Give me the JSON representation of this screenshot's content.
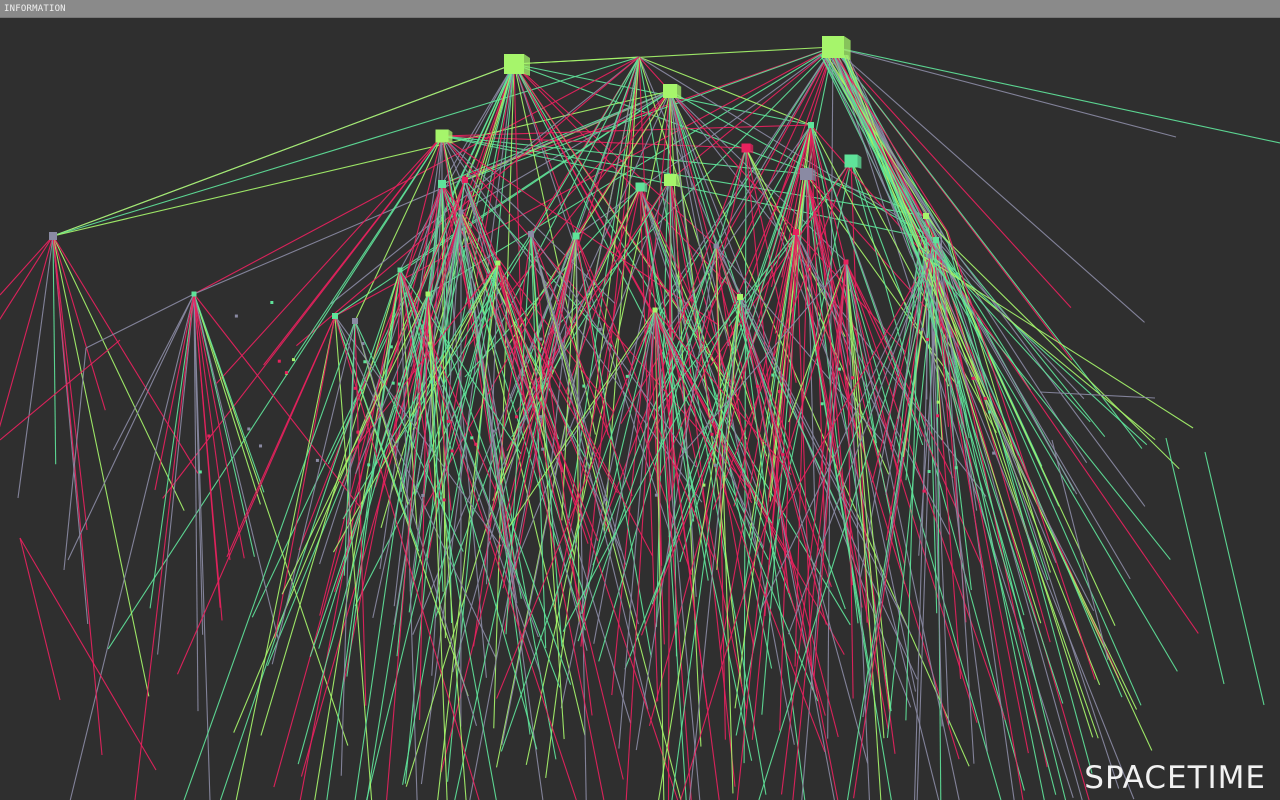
{
  "window": {
    "title": "INFORMATION"
  },
  "scene": {
    "background_color": "#2f2f2f",
    "colors": {
      "green": "#5fe39a",
      "lime": "#a6f56b",
      "pink": "#e8225e",
      "gray": "#8a8aa3"
    },
    "watermark": "SPACETIME"
  }
}
